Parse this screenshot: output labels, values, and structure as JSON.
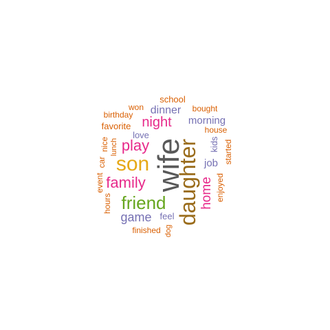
{
  "colors": {
    "grey": "#595959",
    "gold": "#e6a817",
    "brown": "#9a6c1b",
    "magenta": "#e7298a",
    "green": "#66a61e",
    "purple": "#7570b3",
    "orange": "#d95f02"
  },
  "words": [
    {
      "text": "wife",
      "color": "grey"
    },
    {
      "text": "son",
      "color": "gold"
    },
    {
      "text": "daughter",
      "color": "brown"
    },
    {
      "text": "friend",
      "color": "green"
    },
    {
      "text": "family",
      "color": "magenta"
    },
    {
      "text": "play",
      "color": "magenta"
    },
    {
      "text": "night",
      "color": "magenta"
    },
    {
      "text": "home",
      "color": "magenta"
    },
    {
      "text": "game",
      "color": "purple"
    },
    {
      "text": "dinner",
      "color": "purple"
    },
    {
      "text": "morning",
      "color": "purple"
    },
    {
      "text": "job",
      "color": "purple"
    },
    {
      "text": "kids",
      "color": "purple"
    },
    {
      "text": "love",
      "color": "purple"
    },
    {
      "text": "feel",
      "color": "purple"
    },
    {
      "text": "school",
      "color": "orange"
    },
    {
      "text": "bought",
      "color": "orange"
    },
    {
      "text": "won",
      "color": "orange"
    },
    {
      "text": "birthday",
      "color": "orange"
    },
    {
      "text": "favorite",
      "color": "orange"
    },
    {
      "text": "house",
      "color": "orange"
    },
    {
      "text": "started",
      "color": "orange"
    },
    {
      "text": "enjoyed",
      "color": "orange"
    },
    {
      "text": "nice",
      "color": "orange"
    },
    {
      "text": "lunch",
      "color": "orange"
    },
    {
      "text": "car",
      "color": "orange"
    },
    {
      "text": "event",
      "color": "orange"
    },
    {
      "text": "hours",
      "color": "orange"
    },
    {
      "text": "finished",
      "color": "orange"
    },
    {
      "text": "dog",
      "color": "orange"
    }
  ]
}
